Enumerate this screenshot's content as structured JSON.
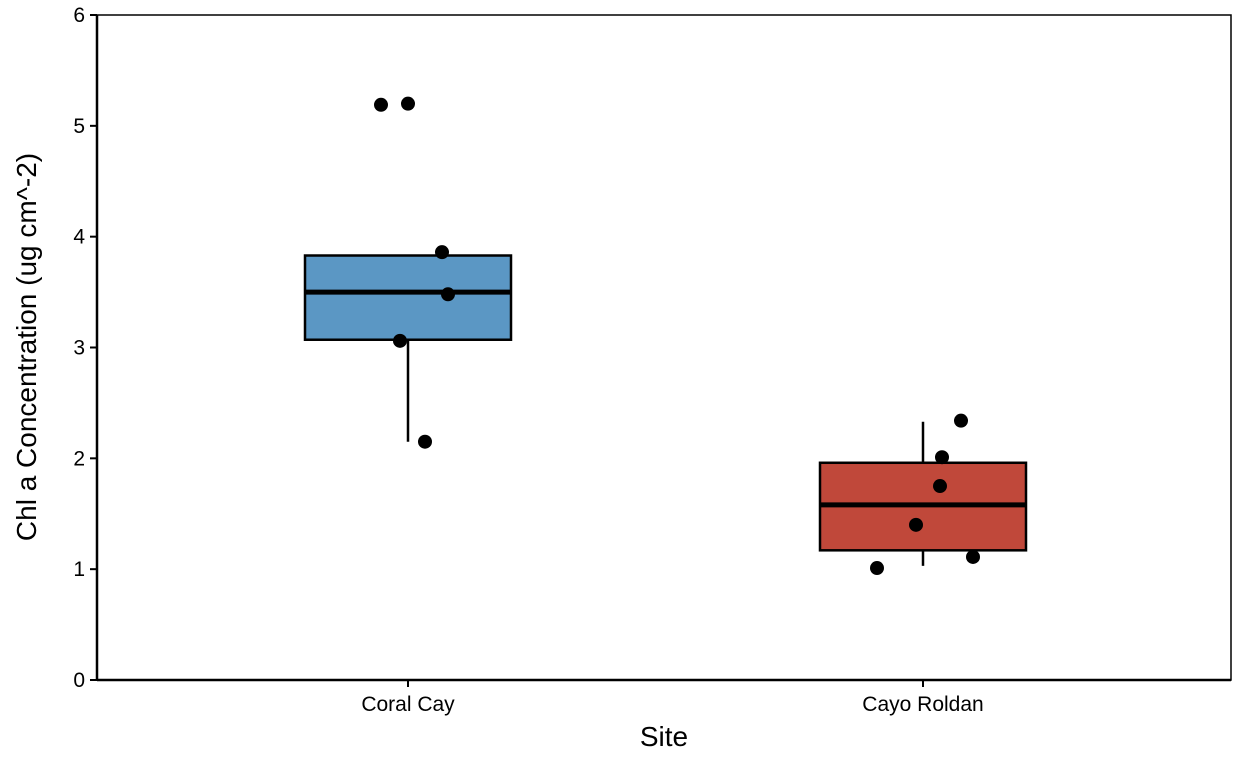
{
  "chart_data": {
    "type": "box",
    "xlabel": "Site",
    "ylabel": "Chl a Concentration (ug cm^-2)",
    "ylim": [
      0,
      6
    ],
    "yticks": [
      0,
      1,
      2,
      3,
      4,
      5,
      6
    ],
    "categories": [
      "Coral Cay",
      "Cayo Roldan"
    ],
    "grid": false,
    "boxes": [
      {
        "category": "Coral Cay",
        "color": "#5b97c4",
        "whisker_low": 2.15,
        "q1": 3.07,
        "median": 3.5,
        "q3": 3.83,
        "whisker_high": 3.83,
        "points": [
          5.19,
          5.2,
          3.86,
          3.48,
          3.06,
          2.15
        ]
      },
      {
        "category": "Cayo Roldan",
        "color": "#c0483a",
        "whisker_low": 1.03,
        "q1": 1.17,
        "median": 1.58,
        "q3": 1.96,
        "whisker_high": 2.33,
        "points": [
          2.34,
          2.01,
          1.75,
          1.4,
          1.11,
          1.01
        ]
      }
    ]
  }
}
